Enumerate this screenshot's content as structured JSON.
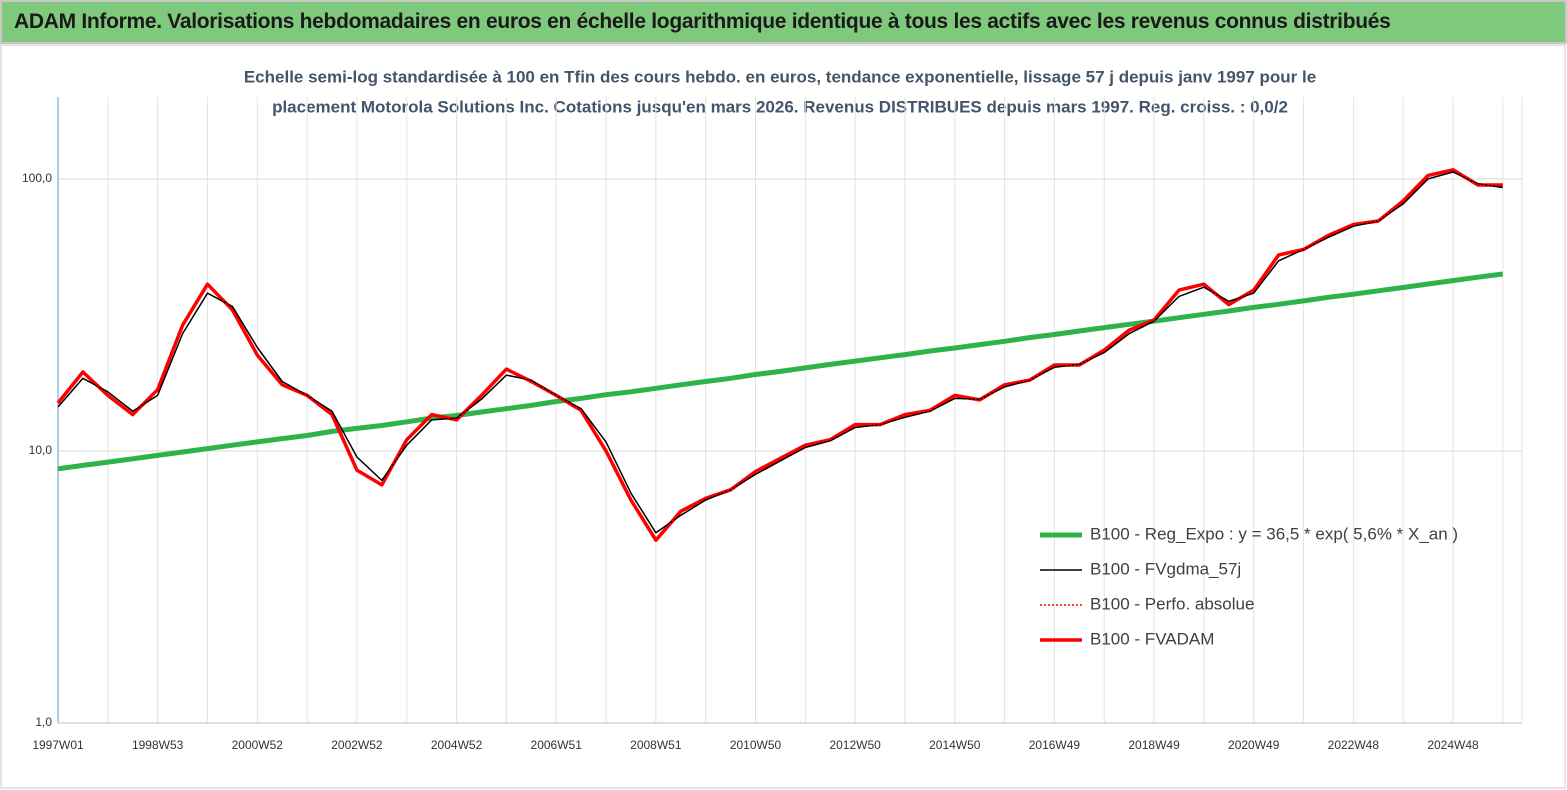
{
  "header": "ADAM Informe. Valorisations hebdomadaires en euros en échelle logarithmique identique à tous les actifs avec les revenus connus distribués",
  "chart_data": {
    "type": "line",
    "title": "Echelle semi-log standardisée à 100 en Tfin des cours hebdo. en euros, tendance exponentielle, lissage 57 j depuis janv 1997 pour le",
    "subtitle": "placement Motorola Solutions Inc. Cotations jusqu'en mars 2026. Revenus DISTRIBUES depuis mars 1997. Reg. croiss. : 0,0/2",
    "log_scale": true,
    "grid": true,
    "ylim": [
      1,
      200
    ],
    "yticks": [
      {
        "value": 1,
        "label": "1,0"
      },
      {
        "value": 10,
        "label": "10,0"
      },
      {
        "value": 100,
        "label": "100,0"
      }
    ],
    "categories": [
      "1997W01",
      null,
      null,
      null,
      "1998W53",
      null,
      null,
      null,
      "2000W52",
      null,
      null,
      null,
      "2002W52",
      null,
      null,
      null,
      "2004W52",
      null,
      null,
      null,
      "2006W51",
      null,
      null,
      null,
      "2008W51",
      null,
      null,
      null,
      "2010W50",
      null,
      null,
      null,
      "2012W50",
      null,
      null,
      null,
      "2014W50",
      null,
      null,
      null,
      "2016W49",
      null,
      null,
      null,
      "2018W49",
      null,
      null,
      null,
      "2020W49",
      null,
      null,
      null,
      "2022W48",
      null,
      null,
      null,
      "2024W48",
      null,
      null
    ],
    "series": [
      {
        "name": "B100 - Reg_Expo : y = 36,5 * exp( 5,6% *  X_an )",
        "color": "#2db34a",
        "line_width": 5,
        "dashed": false,
        "values": [
          8.6,
          8.85,
          9.1,
          9.36,
          9.63,
          9.91,
          10.2,
          10.5,
          10.8,
          11.1,
          11.4,
          11.8,
          12.1,
          12.4,
          12.8,
          13.2,
          13.5,
          13.9,
          14.3,
          14.7,
          15.2,
          15.6,
          16.1,
          16.5,
          17.0,
          17.5,
          18.0,
          18.5,
          19.1,
          19.6,
          20.2,
          20.8,
          21.4,
          22.0,
          22.6,
          23.3,
          23.9,
          24.6,
          25.3,
          26.1,
          26.8,
          27.6,
          28.4,
          29.2,
          30.0,
          30.9,
          31.8,
          32.7,
          33.7,
          34.6,
          35.6,
          36.7,
          37.7,
          38.8,
          39.9,
          41.1,
          42.3,
          43.5,
          44.7
        ]
      },
      {
        "name": "B100 - FVgdma_57j",
        "color": "#000000",
        "line_width": 1.5,
        "dashed": false,
        "values": [
          14.5,
          18.5,
          16.5,
          14,
          16,
          27,
          38,
          34,
          24,
          18,
          16,
          14,
          9.5,
          7.8,
          10.5,
          13,
          13.2,
          15.5,
          19,
          18.2,
          16,
          14.3,
          10.8,
          7,
          5,
          5.8,
          6.6,
          7.2,
          8.2,
          9.2,
          10.3,
          10.9,
          12.2,
          12.5,
          13.3,
          14,
          15.6,
          15.5,
          17.2,
          18.2,
          20.3,
          20.8,
          23,
          27,
          30,
          37,
          40,
          35.5,
          38,
          50,
          55,
          61,
          67,
          70,
          81,
          100,
          106,
          96,
          93
        ]
      },
      {
        "name": "B100 - Perfo. absolue",
        "color": "#ff0000",
        "line_width": 1.5,
        "dashed": true,
        "values": [
          15,
          19.5,
          16,
          13.6,
          16.8,
          29,
          41,
          33,
          22.5,
          17.5,
          16,
          13.6,
          8.5,
          7.5,
          11,
          13.6,
          13,
          16,
          20,
          18,
          16,
          14.1,
          10,
          6.6,
          4.7,
          6,
          6.7,
          7.2,
          8.4,
          9.4,
          10.5,
          11,
          12.5,
          12.5,
          13.6,
          14.1,
          16,
          15.4,
          17.5,
          18.2,
          20.7,
          20.7,
          23.5,
          27.8,
          30.3,
          39,
          41,
          34.5,
          39,
          52.5,
          55,
          62,
          68,
          70,
          83,
          103,
          108,
          95,
          95
        ]
      },
      {
        "name": "B100 - FVADAM",
        "color": "#ff0000",
        "line_width": 3.5,
        "dashed": false,
        "values": [
          15,
          19.5,
          16,
          13.6,
          16.8,
          29,
          41,
          33,
          22.5,
          17.5,
          16,
          13.6,
          8.5,
          7.5,
          11,
          13.6,
          13,
          16,
          20,
          18,
          16,
          14.1,
          10,
          6.6,
          4.7,
          6,
          6.7,
          7.2,
          8.4,
          9.4,
          10.5,
          11,
          12.5,
          12.5,
          13.6,
          14.1,
          16,
          15.4,
          17.5,
          18.2,
          20.7,
          20.7,
          23.5,
          27.8,
          30.3,
          39,
          41,
          34.5,
          39,
          52.5,
          55,
          62,
          68,
          70,
          83,
          103,
          108,
          95,
          95
        ]
      }
    ]
  }
}
